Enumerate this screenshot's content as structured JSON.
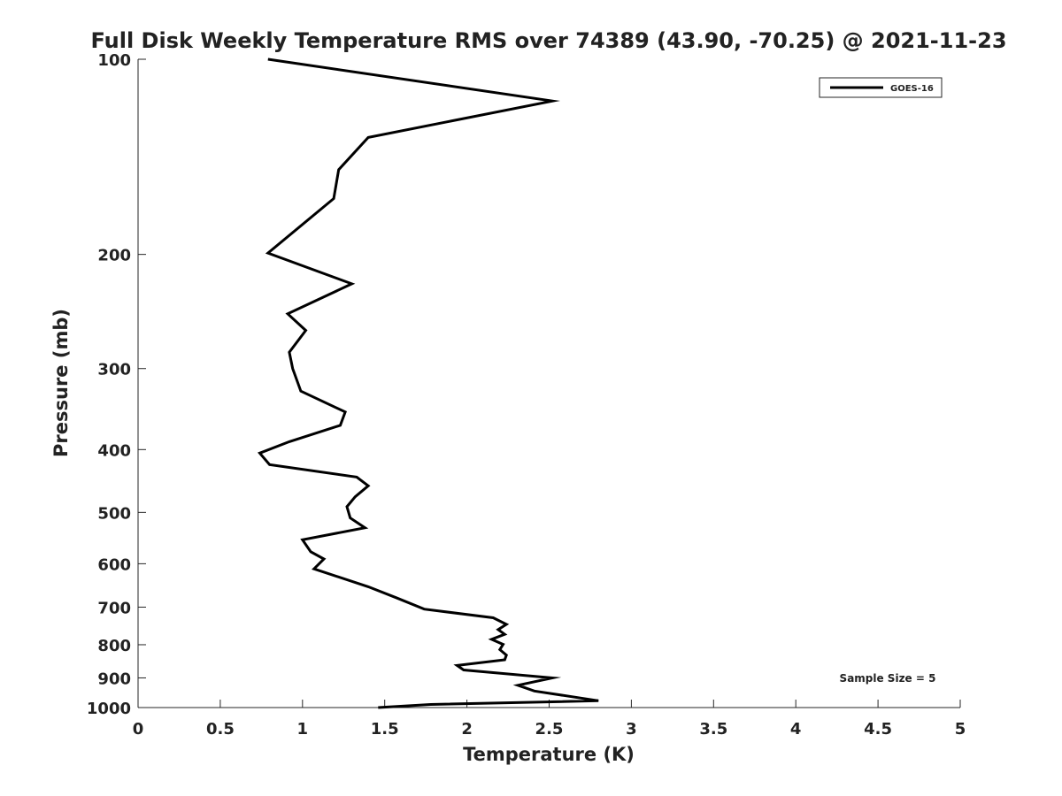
{
  "chart_data": {
    "type": "line",
    "title": "Full Disk Weekly Temperature RMS over 74389 (43.90, -70.25) @ 2021-11-23",
    "xlabel": "Temperature (K)",
    "ylabel": "Pressure (mb)",
    "xlim": [
      0,
      5
    ],
    "ylim": [
      100,
      1000
    ],
    "y_scale": "log",
    "y_reversed": true,
    "grid": false,
    "x_ticks": [
      0,
      0.5,
      1,
      1.5,
      2,
      2.5,
      3,
      3.5,
      4,
      4.5,
      5
    ],
    "x_tick_labels": [
      "0",
      "0.5",
      "1",
      "1.5",
      "2",
      "2.5",
      "3",
      "3.5",
      "4",
      "4.5",
      "5"
    ],
    "y_ticks": [
      100,
      200,
      300,
      400,
      500,
      600,
      700,
      800,
      900,
      1000
    ],
    "y_tick_labels": [
      "100",
      "200",
      "300",
      "400",
      "500",
      "600",
      "700",
      "800",
      "900",
      "1000"
    ],
    "legend_position": "top-right",
    "annotation": "Sample Size = 5",
    "series": [
      {
        "name": "GOES-16",
        "color": "#000000",
        "x": [
          0.79,
          2.52,
          1.4,
          1.22,
          1.19,
          0.79,
          1.3,
          0.91,
          1.02,
          0.92,
          0.94,
          0.99,
          1.26,
          1.23,
          0.92,
          0.74,
          0.8,
          1.33,
          1.4,
          1.32,
          1.27,
          1.29,
          1.38,
          1.0,
          1.05,
          1.13,
          1.07,
          1.4,
          1.57,
          1.74,
          2.16,
          2.24,
          2.19,
          2.23,
          2.15,
          2.22,
          2.2,
          2.24,
          2.23,
          1.94,
          1.98,
          2.52,
          2.31,
          2.41,
          2.8,
          1.78,
          1.46
        ],
        "y": [
          100,
          116,
          132,
          148,
          164,
          199,
          222,
          247,
          262,
          283,
          300,
          325,
          350,
          367,
          389,
          405,
          422,
          441,
          455,
          473,
          490,
          510,
          528,
          551,
          575,
          590,
          611,
          651,
          677,
          705,
          727,
          744,
          758,
          771,
          785,
          799,
          814,
          830,
          844,
          861,
          875,
          900,
          924,
          943,
          976,
          989,
          1000
        ]
      }
    ]
  }
}
